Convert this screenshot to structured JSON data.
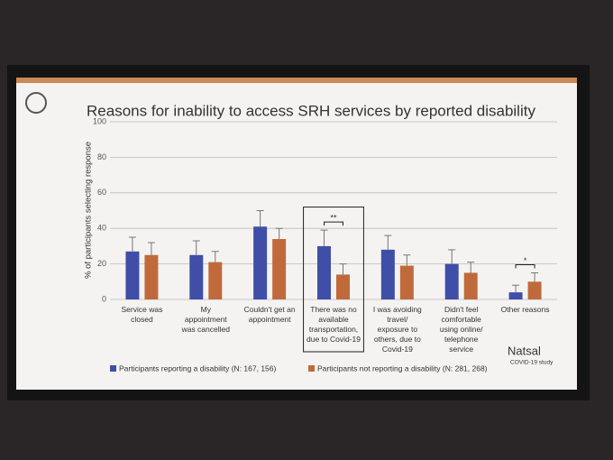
{
  "chart_data": {
    "type": "bar",
    "title": "Reasons for inability to access SRH services by reported disability",
    "y_label": "% of participants selecting response",
    "categories": [
      "Service was\nclosed",
      "My\nappointment\nwas cancelled",
      "Couldn't get an\nappointment",
      "There was no\navailable\ntransportation,\ndue to Covid-19",
      "I was avoiding\ntravel/\nexposure to\nothers, due to\nCovid-19",
      "Didn't feel\ncomfortable\nusing online/\ntelephone\nservice",
      "Other reasons"
    ],
    "series": [
      {
        "name": "Participants reporting a disability (N: 167, 156)",
        "color": "#3f4fa8",
        "values": [
          27,
          25,
          41,
          30,
          28,
          20,
          4
        ],
        "errors": [
          8,
          8,
          9,
          9,
          8,
          8,
          4
        ]
      },
      {
        "name": "Participants not reporting a disability (N: 281, 268)",
        "color": "#c06a3c",
        "values": [
          25,
          21,
          34,
          14,
          19,
          15,
          10
        ],
        "errors": [
          7,
          6,
          6,
          6,
          6,
          6,
          5
        ]
      }
    ],
    "significance": [
      null,
      null,
      null,
      "**",
      null,
      null,
      "*"
    ],
    "highlight_index": 3,
    "ylim": [
      0,
      100
    ],
    "yticks": [
      0,
      20,
      40,
      60,
      80,
      100
    ],
    "grid": true,
    "logo": "Natsal",
    "logo_sub": "COVID-19 study"
  }
}
